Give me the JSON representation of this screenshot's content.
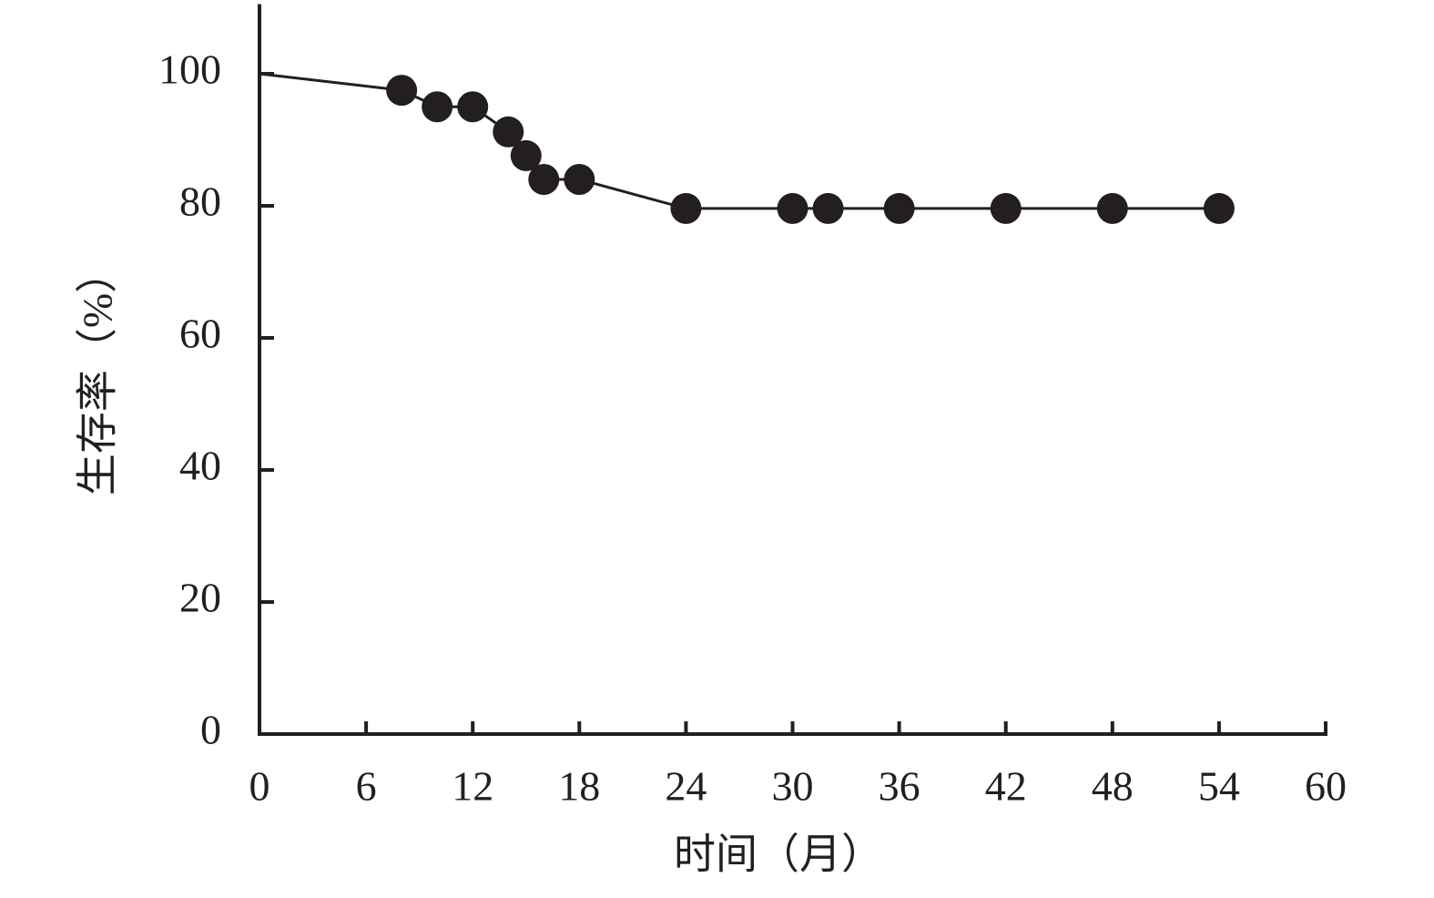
{
  "chart_data": {
    "type": "line",
    "x_label": "时间（月）",
    "y_label": "生存率（%）",
    "x": [
      0,
      8,
      10,
      12,
      14,
      15,
      16,
      18,
      24,
      30,
      32,
      36,
      42,
      48,
      54
    ],
    "series": [
      {
        "color": "#231f20",
        "values": [
          100,
          97.5,
          95,
          95,
          91.2,
          87.6,
          84,
          84,
          79.6,
          79.6,
          79.6,
          79.6,
          79.6,
          79.6,
          79.6
        ]
      }
    ],
    "xlim": [
      0,
      60
    ],
    "xticks": [
      0,
      6,
      12,
      18,
      24,
      30,
      36,
      42,
      48,
      54,
      60
    ],
    "ylim": [
      0,
      110
    ],
    "yticks": [
      0,
      20,
      40,
      60,
      80,
      100
    ],
    "grid": false
  }
}
